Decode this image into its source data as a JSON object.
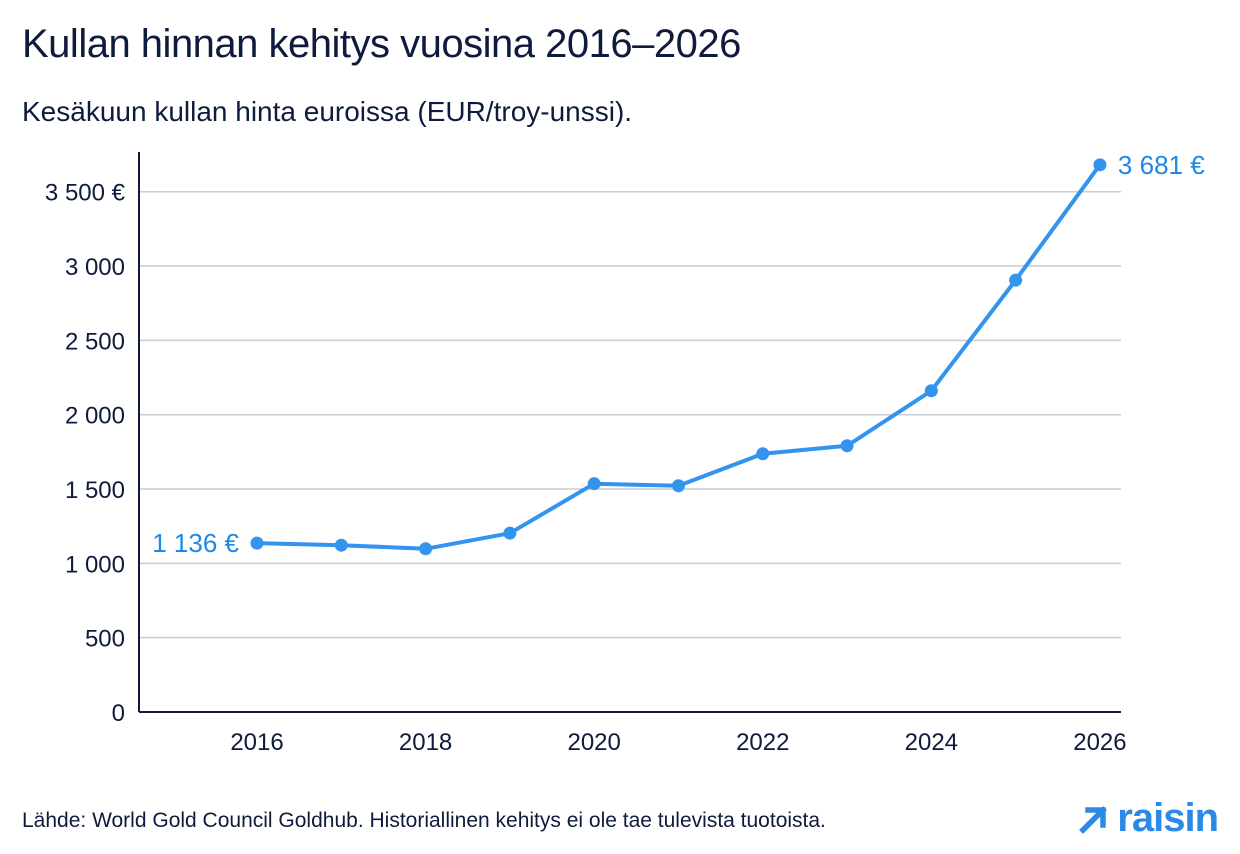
{
  "header": {
    "title": "Kullan hinnan kehitys vuosina 2016–2026",
    "subtitle": "Kesäkuun kullan hinta euroissa (EUR/troy-unssi)."
  },
  "footer": {
    "source": "Lähde: World Gold Council Goldhub. Historiallinen kehitys ei ole tae tulevista tuotoista.",
    "logo_text": "raisin"
  },
  "colors": {
    "line": "#3394f0",
    "label": "#1e88e5",
    "grid": "#c9ccd6",
    "axis": "#0f1b3d"
  },
  "chart_data": {
    "type": "line",
    "title": "Kullan hinnan kehitys vuosina 2016–2026",
    "subtitle": "Kesäkuun kullan hinta euroissa (EUR/troy-unssi).",
    "xlabel": "",
    "ylabel": "",
    "x": [
      2016,
      2017,
      2018,
      2019,
      2020,
      2021,
      2022,
      2023,
      2024,
      2025,
      2026
    ],
    "values": [
      1136,
      1122,
      1098,
      1203,
      1536,
      1522,
      1737,
      1791,
      2161,
      2905,
      3681
    ],
    "xlim": [
      2014.6,
      2026.25
    ],
    "ylim": [
      0,
      3700
    ],
    "x_ticks": [
      2016,
      2018,
      2020,
      2022,
      2024,
      2026
    ],
    "x_tick_labels": [
      "2016",
      "2018",
      "2020",
      "2022",
      "2024",
      "2026"
    ],
    "y_ticks": [
      0,
      500,
      1000,
      1500,
      2000,
      2500,
      3000,
      3500
    ],
    "y_tick_labels": [
      "0",
      "500",
      "1 000",
      "1 500",
      "2 000",
      "2 500",
      "3 000",
      "3 500 €"
    ],
    "data_labels": [
      {
        "index": 0,
        "text": "1 136 €",
        "side": "left"
      },
      {
        "index": 10,
        "text": "3 681 €",
        "side": "right"
      }
    ],
    "grid": true,
    "legend": "none"
  }
}
